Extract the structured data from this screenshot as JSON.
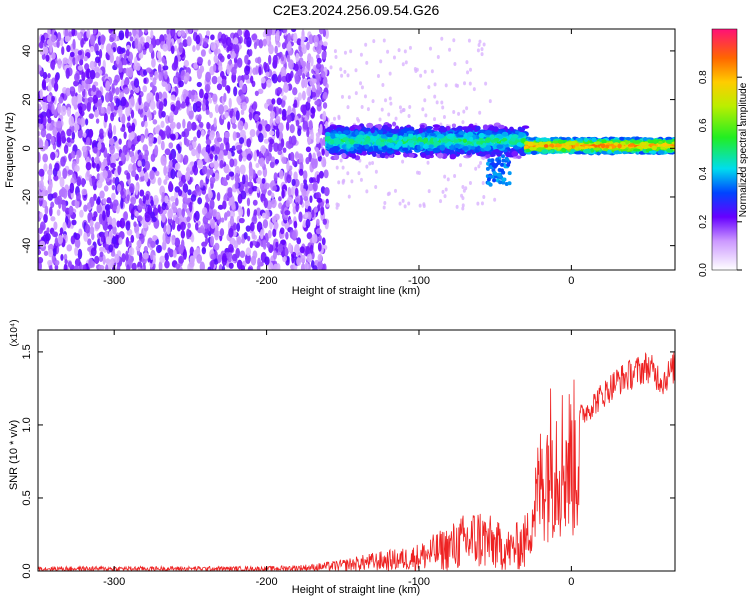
{
  "page_title": "C2E3.2024.256.09.54.G26",
  "chart_data": [
    {
      "type": "heatmap",
      "xlabel": "Height of straight line (km)",
      "ylabel": "Frequency (Hz)",
      "xlim": [
        -350,
        68
      ],
      "ylim": [
        -50,
        49
      ],
      "x_ticks": [
        -300,
        -200,
        -100,
        0
      ],
      "y_ticks": [
        -40,
        -20,
        0,
        20,
        40
      ],
      "colorbar": {
        "label": "Normalized spectral amplitude",
        "range": [
          0.0,
          1.0
        ],
        "ticks": [
          0.0,
          0.2,
          0.4,
          0.6,
          0.8
        ]
      },
      "regions": [
        {
          "x_range": [
            -350,
            -160
          ],
          "freq_range": [
            -50,
            49
          ],
          "amplitude": "low, broadband noise"
        },
        {
          "x_range": [
            -160,
            -30
          ],
          "freq_center": 3,
          "freq_halfwidth": 6,
          "amplitude": "0.1-0.5"
        },
        {
          "x_range": [
            -30,
            68
          ],
          "freq_center": 1,
          "freq_halfwidth": 3,
          "amplitude": "0.5-1.0"
        }
      ],
      "grid": false
    },
    {
      "type": "line",
      "xlabel": "Height of straight line (km)",
      "ylabel": "SNR (10 * v/v)",
      "y_scale_label": "(x10⁴)",
      "xlim": [
        -350,
        68
      ],
      "ylim": [
        0,
        1.65
      ],
      "x_ticks": [
        -300,
        -200,
        -100,
        0
      ],
      "y_ticks": [
        0.0,
        0.5,
        1.0,
        1.5
      ],
      "series": [
        {
          "color": "#ee2222",
          "x": [
            -350,
            -300,
            -250,
            -200,
            -170,
            -150,
            -130,
            -110,
            -100,
            -90,
            -80,
            -70,
            -60,
            -50,
            -40,
            -30,
            -25,
            -20,
            -15,
            -10,
            -5,
            0,
            10,
            20,
            30,
            40,
            50,
            60,
            68
          ],
          "values": [
            0.02,
            0.02,
            0.02,
            0.02,
            0.03,
            0.05,
            0.08,
            0.1,
            0.12,
            0.16,
            0.2,
            0.25,
            0.28,
            0.22,
            0.18,
            0.25,
            0.55,
            0.8,
            1.0,
            1.05,
            1.0,
            1.0,
            1.1,
            1.2,
            1.3,
            1.35,
            1.4,
            1.3,
            1.4
          ]
        }
      ],
      "grid": false
    }
  ]
}
